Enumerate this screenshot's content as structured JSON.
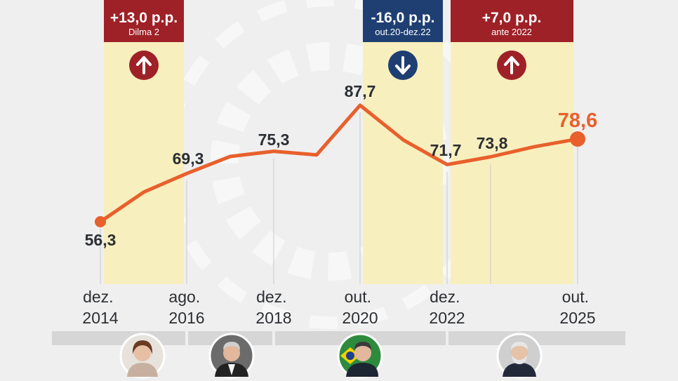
{
  "chart_data": {
    "type": "line",
    "points": [
      {
        "x": "dez. 2014",
        "y": 56.3,
        "label": "56,3"
      },
      {
        "x": "2015",
        "y": 64.3
      },
      {
        "x": "ago. 2016",
        "y": 69.3,
        "label": "69,3"
      },
      {
        "x": "2017",
        "y": 73.9
      },
      {
        "x": "dez. 2018",
        "y": 75.3,
        "label": "75,3"
      },
      {
        "x": "2019",
        "y": 74.3
      },
      {
        "x": "out. 2020",
        "y": 87.7,
        "label": "87,7"
      },
      {
        "x": "2021",
        "y": 78.3
      },
      {
        "x": "dez. 2022",
        "y": 71.7,
        "label": "71,7"
      },
      {
        "x": "2023",
        "y": 73.8,
        "label": "73,8"
      },
      {
        "x": "2024",
        "y": 76.5
      },
      {
        "x": "out. 2025",
        "y": 78.6,
        "label": "78,6"
      }
    ],
    "x_ticks": [
      {
        "line1": "dez.",
        "line2": "2014"
      },
      {
        "line1": "ago.",
        "line2": "2016"
      },
      {
        "line1": "dez.",
        "line2": "2018"
      },
      {
        "line1": "out.",
        "line2": "2020"
      },
      {
        "line1": "dez.",
        "line2": "2022"
      },
      {
        "line1": "out.",
        "line2": "2025"
      }
    ],
    "highlight_periods": [
      {
        "title": "+13,0 p.p.",
        "subtitle": "Dilma 2",
        "direction": "up",
        "color": "#9e2127"
      },
      {
        "title": "-16,0 p.p.",
        "subtitle": "out.20-dez.22",
        "direction": "down",
        "color": "#1f3f73"
      },
      {
        "title": "+7,0 p.p.",
        "subtitle": "ante 2022",
        "direction": "up",
        "color": "#9e2127"
      }
    ],
    "ylim": [
      50,
      95
    ],
    "line_color": "#e8602c",
    "band_color": "#f8efbe",
    "presidents": [
      "Dilma",
      "Temer",
      "Bolsonaro",
      "Lula"
    ]
  }
}
